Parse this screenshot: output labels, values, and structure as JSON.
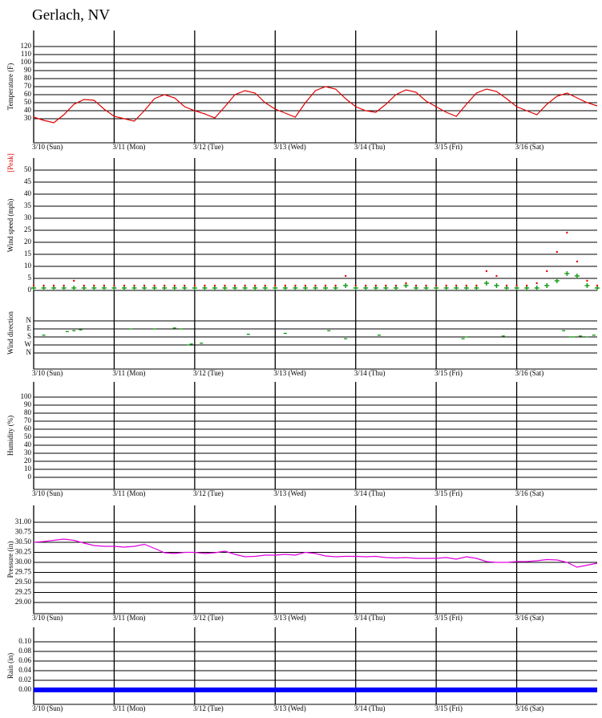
{
  "page_title": "Gerlach, NV",
  "chart_data": [
    {
      "type": "line",
      "ylabel": "Temperature (F)",
      "ylim": [
        0,
        140
      ],
      "yticks": [
        30,
        40,
        50,
        60,
        70,
        80,
        90,
        100,
        110,
        120
      ],
      "xlim": [
        0,
        168
      ],
      "xticks": [
        {
          "value": 0,
          "label": "3/10 (Sun)"
        },
        {
          "value": 24,
          "label": "3/11 (Mon)"
        },
        {
          "value": 48,
          "label": "3/12 (Tue)"
        },
        {
          "value": 72,
          "label": "3/13 (Wed)"
        },
        {
          "value": 96,
          "label": "3/14 (Thu)"
        },
        {
          "value": 120,
          "label": "3/15 (Fri)"
        },
        {
          "value": 144,
          "label": "3/16 (Sat)"
        }
      ],
      "x": [
        0,
        3,
        6,
        9,
        12,
        15,
        18,
        21,
        24,
        27,
        30,
        33,
        36,
        39,
        42,
        45,
        48,
        51,
        54,
        57,
        60,
        63,
        66,
        69,
        72,
        75,
        78,
        81,
        84,
        87,
        90,
        93,
        96,
        99,
        102,
        105,
        108,
        111,
        114,
        117,
        120,
        123,
        126,
        129,
        132,
        135,
        138,
        141,
        144,
        147,
        150,
        153,
        156,
        159,
        162,
        165,
        168
      ],
      "series": [
        {
          "color": "#e00000",
          "values": [
            32,
            28,
            25,
            35,
            48,
            54,
            53,
            42,
            33,
            30,
            27,
            40,
            55,
            60,
            56,
            45,
            40,
            36,
            31,
            45,
            60,
            65,
            62,
            50,
            42,
            37,
            32,
            50,
            65,
            70,
            67,
            55,
            45,
            40,
            38,
            48,
            60,
            66,
            63,
            52,
            45,
            38,
            33,
            48,
            62,
            67,
            64,
            55,
            45,
            40,
            35,
            48,
            58,
            62,
            56,
            50,
            46
          ]
        }
      ]
    },
    {
      "type": "wind",
      "ylabel": "Wind speed (mph)",
      "y2label": "Wind direction",
      "ylim": [
        -1,
        55
      ],
      "yticks": [
        0,
        5,
        10,
        15,
        20,
        25,
        30,
        35,
        40,
        45,
        50
      ],
      "y2lim": [
        540,
        -270
      ],
      "y2ticks": [
        {
          "value": 0,
          "label": "N"
        },
        {
          "value": 90,
          "label": "E"
        },
        {
          "value": 180,
          "label": "S"
        },
        {
          "value": 270,
          "label": "W"
        },
        {
          "value": 360,
          "label": "N"
        }
      ],
      "xlim": [
        0,
        168
      ],
      "xticks": [
        {
          "value": 0,
          "label": "3/10 (Sun)"
        },
        {
          "value": 24,
          "label": "3/11 (Mon)"
        },
        {
          "value": 48,
          "label": "3/12 (Tue)"
        },
        {
          "value": 72,
          "label": "3/13 (Wed)"
        },
        {
          "value": 96,
          "label": "3/14 (Thu)"
        },
        {
          "value": 120,
          "label": "3/15 (Fri)"
        },
        {
          "value": 144,
          "label": "3/16 (Sat)"
        }
      ],
      "x": [
        0,
        3,
        6,
        9,
        12,
        15,
        18,
        21,
        24,
        27,
        30,
        33,
        36,
        39,
        42,
        45,
        48,
        51,
        54,
        57,
        60,
        63,
        66,
        69,
        72,
        75,
        78,
        81,
        84,
        87,
        90,
        93,
        96,
        99,
        102,
        105,
        108,
        111,
        114,
        117,
        120,
        123,
        126,
        129,
        132,
        135,
        138,
        141,
        144,
        147,
        150,
        153,
        156,
        159,
        162,
        165,
        168
      ],
      "series": [
        {
          "color": "#1a9a1a",
          "marker": "plus",
          "values": [
            1,
            1,
            1,
            1,
            1,
            1,
            1,
            1,
            1,
            1,
            1,
            1,
            1,
            1,
            1,
            1,
            1,
            1,
            1,
            1,
            1,
            1,
            1,
            1,
            1,
            1,
            1,
            1,
            1,
            1,
            1,
            2,
            1,
            1,
            1,
            1,
            1,
            2,
            1,
            1,
            1,
            1,
            1,
            1,
            1,
            3,
            2,
            1,
            1,
            1,
            1,
            2,
            4,
            7,
            6,
            2,
            1
          ]
        },
        {
          "name": "[Peak]",
          "color": "#e00000",
          "marker": "dot",
          "values": [
            2,
            2,
            2,
            2,
            4,
            2,
            2,
            2,
            2,
            2,
            2,
            2,
            2,
            2,
            2,
            2,
            2,
            2,
            2,
            2,
            2,
            2,
            2,
            2,
            2,
            2,
            2,
            2,
            2,
            2,
            2,
            6,
            2,
            2,
            2,
            2,
            2,
            3,
            2,
            2,
            2,
            2,
            2,
            2,
            2,
            8,
            6,
            2,
            2,
            2,
            3,
            8,
            16,
            24,
            12,
            4,
            2
          ]
        },
        {
          "axis": "y2",
          "color": "#1a9a1a",
          "marker": "dash",
          "x": [
            3,
            10,
            12,
            14,
            29,
            36,
            42,
            44,
            46,
            47,
            50,
            64,
            75,
            88,
            93,
            103,
            128,
            129,
            140,
            158,
            160,
            161,
            163,
            165,
            167
          ],
          "values": [
            160,
            120,
            110,
            100,
            90,
            90,
            80,
            90,
            270,
            260,
            250,
            150,
            140,
            110,
            200,
            160,
            200,
            180,
            170,
            110,
            180,
            180,
            170,
            180,
            160
          ]
        }
      ]
    },
    {
      "type": "line",
      "ylabel": "Humidity (%)",
      "ylim": [
        -15,
        119
      ],
      "yticks": [
        0,
        10,
        20,
        30,
        40,
        50,
        60,
        70,
        80,
        90,
        100
      ],
      "xlim": [
        0,
        168
      ],
      "xticks": [
        {
          "value": 0,
          "label": "3/10 (Sun)"
        },
        {
          "value": 24,
          "label": "3/11 (Mon)"
        },
        {
          "value": 48,
          "label": "3/12 (Tue)"
        },
        {
          "value": 72,
          "label": "3/13 (Wed)"
        },
        {
          "value": 96,
          "label": "3/14 (Thu)"
        },
        {
          "value": 120,
          "label": "3/15 (Fri)"
        },
        {
          "value": 144,
          "label": "3/16 (Sat)"
        }
      ],
      "series": []
    },
    {
      "type": "line",
      "ylabel": "Pressure (in)",
      "ylim": [
        28.72,
        31.42
      ],
      "yticks": [
        {
          "value": 29,
          "label": "29.00"
        },
        29.25,
        {
          "value": 29.5,
          "label": "29.50"
        },
        29.75,
        {
          "value": 30,
          "label": "30.00"
        },
        30.25,
        {
          "value": 30.5,
          "label": "30.50"
        },
        30.75,
        {
          "value": 31,
          "label": "31.00"
        }
      ],
      "xlim": [
        0,
        168
      ],
      "xticks": [
        {
          "value": 0,
          "label": "3/10 (Sun)"
        },
        {
          "value": 24,
          "label": "3/11 (Mon)"
        },
        {
          "value": 48,
          "label": "3/12 (Tue)"
        },
        {
          "value": 72,
          "label": "3/13 (Wed)"
        },
        {
          "value": 96,
          "label": "3/14 (Thu)"
        },
        {
          "value": 120,
          "label": "3/15 (Fri)"
        },
        {
          "value": 144,
          "label": "3/16 (Sat)"
        }
      ],
      "x": [
        0,
        3,
        6,
        9,
        12,
        15,
        18,
        21,
        24,
        27,
        30,
        33,
        36,
        39,
        42,
        45,
        48,
        51,
        54,
        57,
        60,
        63,
        66,
        69,
        72,
        75,
        78,
        81,
        84,
        87,
        90,
        93,
        96,
        99,
        102,
        105,
        108,
        111,
        114,
        117,
        120,
        123,
        126,
        129,
        132,
        135,
        138,
        141,
        144,
        147,
        150,
        153,
        156,
        159,
        162,
        165,
        168
      ],
      "series": [
        {
          "color": "#e000e0",
          "values": [
            30.5,
            30.52,
            30.55,
            30.58,
            30.55,
            30.48,
            30.42,
            30.4,
            30.4,
            30.38,
            30.4,
            30.45,
            30.35,
            30.24,
            30.22,
            30.25,
            30.25,
            30.22,
            30.24,
            30.28,
            30.2,
            30.14,
            30.15,
            30.18,
            30.18,
            30.2,
            30.18,
            30.25,
            30.22,
            30.16,
            30.14,
            30.15,
            30.15,
            30.14,
            30.15,
            30.12,
            30.11,
            30.12,
            30.1,
            30.1,
            30.1,
            30.12,
            30.08,
            30.14,
            30.1,
            30.02,
            30.0,
            30.0,
            30.02,
            30.02,
            30.04,
            30.07,
            30.06,
            30.0,
            29.88,
            29.93,
            29.98
          ]
        }
      ]
    },
    {
      "type": "line",
      "ylabel": "Rain (in)",
      "ylim": [
        -0.03,
        0.13
      ],
      "yticks": [
        {
          "value": 0,
          "label": "0.00"
        },
        0.02,
        0.04,
        0.06,
        0.08,
        {
          "value": 0.1,
          "label": "0.10"
        }
      ],
      "xlim": [
        0,
        168
      ],
      "xticks": [
        {
          "value": 0,
          "label": "3/10 (Sun)"
        },
        {
          "value": 24,
          "label": "3/11 (Mon)"
        },
        {
          "value": 48,
          "label": "3/12 (Tue)"
        },
        {
          "value": 72,
          "label": "3/13 (Wed)"
        },
        {
          "value": 96,
          "label": "3/14 (Thu)"
        },
        {
          "value": 120,
          "label": "3/15 (Fri)"
        },
        {
          "value": 144,
          "label": "3/16 (Sat)"
        }
      ],
      "x": [
        0,
        168
      ],
      "series": [
        {
          "color": "#0000ff",
          "width": 6,
          "values": [
            0,
            0
          ]
        }
      ]
    }
  ]
}
